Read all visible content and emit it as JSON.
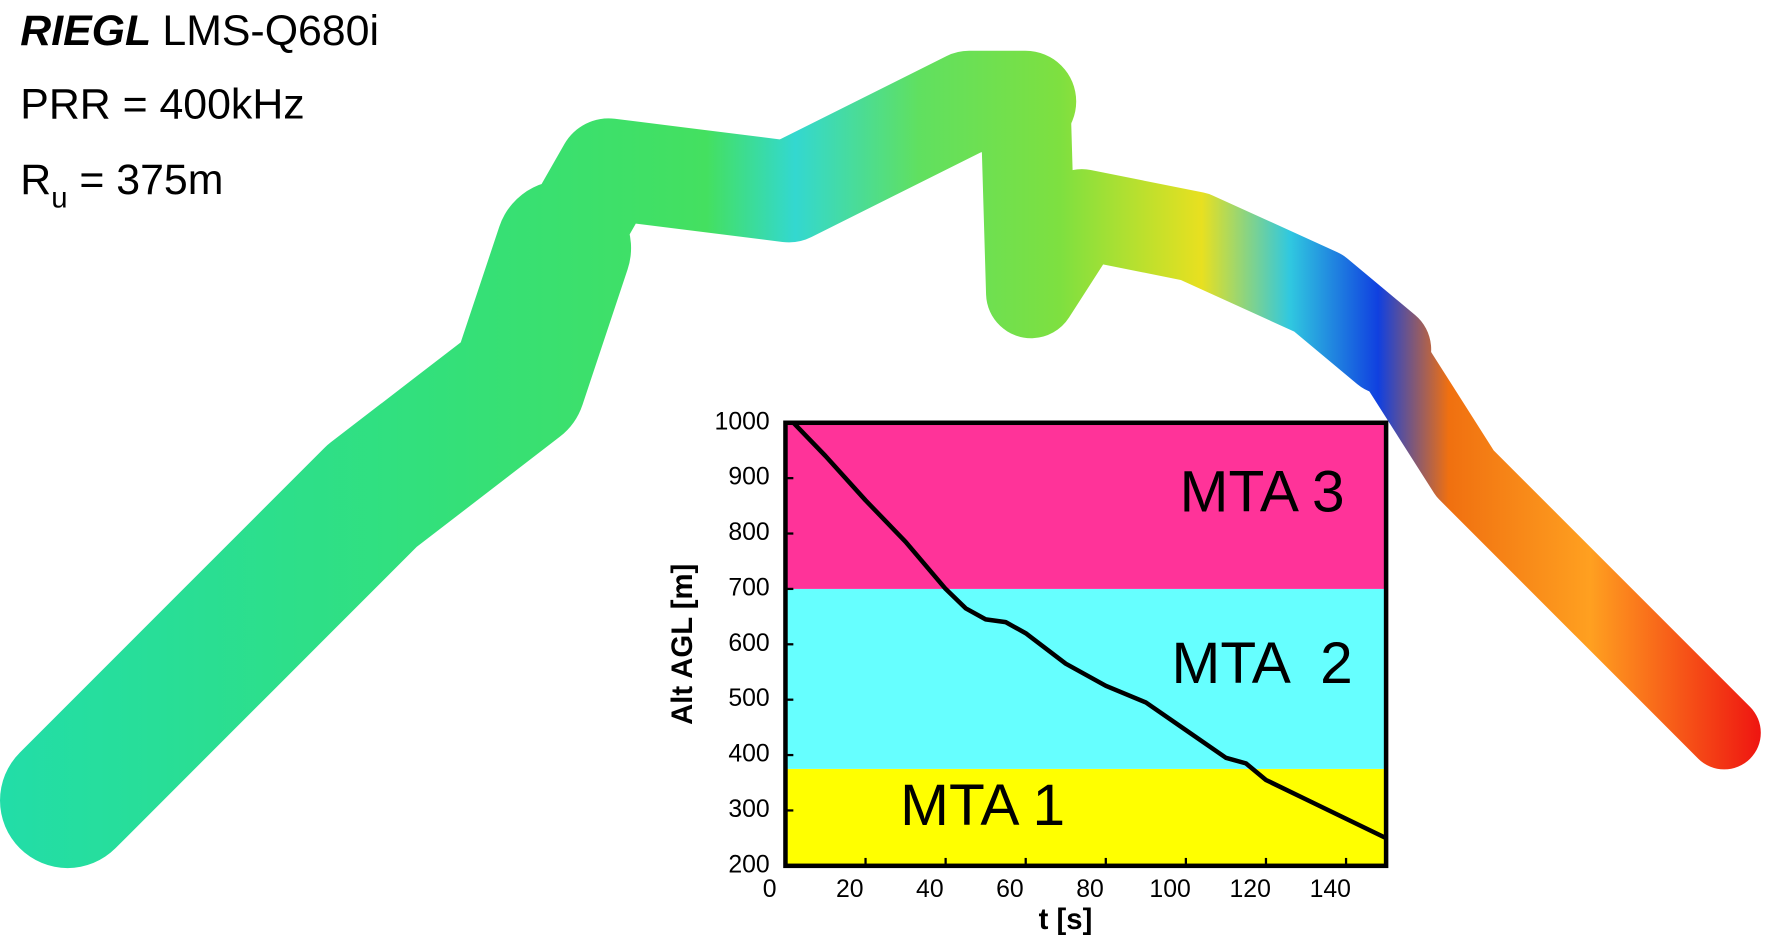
{
  "chart_data": {
    "type": "line",
    "header": {
      "brand": "RIEGL",
      "model": "LMS-Q680i",
      "prr": "PRR = 400kHz",
      "range_symbol": "R",
      "range_subscript": "u",
      "range_value": " = 375m"
    },
    "xlabel": "t [s]",
    "ylabel": "Alt AGL [m]",
    "xlim": [
      0,
      150
    ],
    "ylim": [
      200,
      1000
    ],
    "xticks": [
      0,
      20,
      40,
      60,
      80,
      100,
      120,
      140
    ],
    "yticks": [
      200,
      300,
      400,
      500,
      600,
      700,
      800,
      900,
      1000
    ],
    "bands": [
      {
        "name": "MTA 1",
        "from": 200,
        "to": 375,
        "color": "#ffff00"
      },
      {
        "name": "MTA  2",
        "from": 375,
        "to": 700,
        "color": "#66ffff"
      },
      {
        "name": "MTA 3",
        "from": 700,
        "to": 1000,
        "color": "#ff3399"
      }
    ],
    "series": [
      {
        "color": "#000000",
        "x": [
          2,
          10,
          20,
          30,
          40,
          45,
          50,
          55,
          60,
          70,
          80,
          90,
          100,
          110,
          115,
          120,
          130,
          140,
          150
        ],
        "values": [
          1000,
          940,
          860,
          785,
          700,
          665,
          645,
          640,
          620,
          565,
          525,
          495,
          445,
          395,
          385,
          355,
          320,
          285,
          250
        ]
      }
    ]
  }
}
